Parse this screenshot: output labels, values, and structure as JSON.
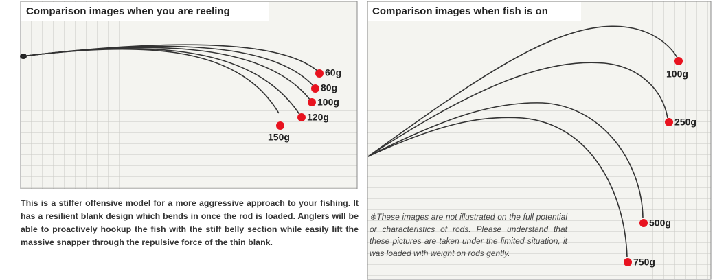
{
  "left": {
    "title": "Comparison images when you are reeling",
    "labels": [
      "60g",
      "80g",
      "100g",
      "120g",
      "150g"
    ],
    "description": "This is a stiffer offensive model for a more aggressive approach to your fishing. It has a  resilient blank design which bends in once the rod is loaded. Anglers will be able to proactively hookup the fish with the stiff belly section while easily lift the massive snapper through the repulsive force of the thin blank."
  },
  "right": {
    "title": "Comparison images when fish is on",
    "labels": [
      "100g",
      "250g",
      "500g",
      "750g"
    ],
    "note": "※These images are not illustrated on the full potential or characteristics of rods. Please understand that these pictures are taken under the limited situation, it was loaded with weight on rods gently."
  }
}
